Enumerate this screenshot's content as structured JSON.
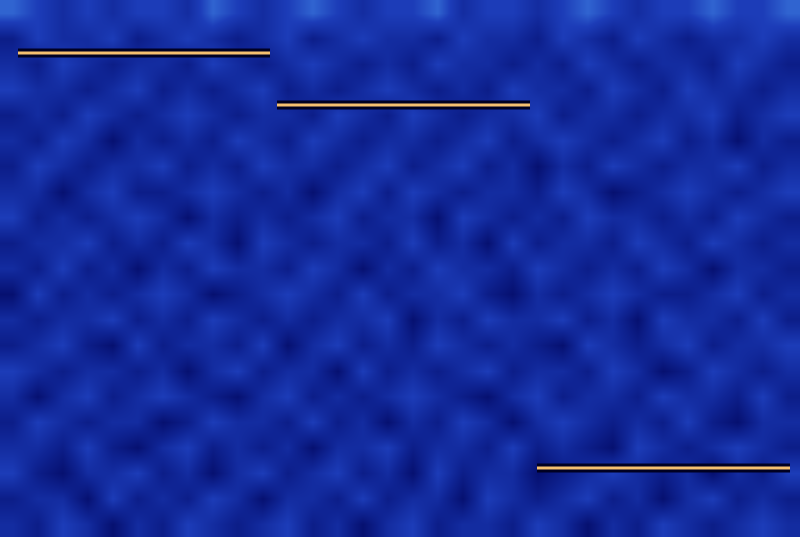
{
  "chart_data": {
    "type": "heatmap",
    "xlim": [
      0,
      32
    ],
    "ylim": [
      0,
      21
    ],
    "zlim": [
      0,
      10
    ],
    "tick_labels": false,
    "grid": false,
    "cells": [
      [
        5,
        4,
        6,
        5,
        3,
        5,
        4,
        6,
        5,
        4,
        5,
        6,
        4,
        5,
        3,
        5,
        6,
        4,
        5,
        5,
        4,
        6,
        5,
        3,
        5,
        4,
        6,
        5,
        4,
        5,
        6,
        5
      ],
      [
        4,
        5,
        5,
        3,
        6,
        4,
        5,
        4,
        6,
        5,
        3,
        5,
        5,
        4,
        6,
        4,
        5,
        5,
        3,
        6,
        5,
        4,
        5,
        6,
        4,
        5,
        3,
        5,
        6,
        4,
        5,
        4
      ],
      [
        6,
        4,
        3,
        5,
        5,
        6,
        4,
        5,
        3,
        5,
        6,
        4,
        5,
        6,
        4,
        5,
        3,
        6,
        4,
        5,
        5,
        3,
        4,
        5,
        6,
        5,
        4,
        5,
        3,
        5,
        4,
        6
      ],
      [
        5,
        5,
        4,
        6,
        4,
        3,
        5,
        6,
        4,
        5,
        4,
        5,
        3,
        5,
        5,
        6,
        4,
        5,
        5,
        4,
        6,
        4,
        5,
        4,
        3,
        6,
        5,
        4,
        5,
        6,
        5,
        4
      ],
      [
        4,
        6,
        5,
        4,
        5,
        5,
        3,
        4,
        6,
        5,
        5,
        4,
        6,
        4,
        5,
        3,
        5,
        4,
        6,
        5,
        3,
        5,
        6,
        5,
        4,
        5,
        4,
        6,
        4,
        3,
        5,
        5
      ],
      [
        5,
        3,
        5,
        6,
        4,
        5,
        6,
        5,
        4,
        3,
        5,
        6,
        4,
        5,
        4,
        5,
        6,
        5,
        4,
        3,
        5,
        6,
        4,
        5,
        5,
        4,
        6,
        5,
        5,
        4,
        6,
        4
      ],
      [
        6,
        5,
        4,
        5,
        5,
        4,
        5,
        3,
        5,
        6,
        4,
        5,
        5,
        3,
        6,
        4,
        5,
        4,
        5,
        6,
        4,
        5,
        5,
        4,
        6,
        5,
        3,
        4,
        6,
        5,
        4,
        5
      ],
      [
        4,
        5,
        6,
        4,
        3,
        6,
        4,
        5,
        5,
        4,
        6,
        3,
        5,
        6,
        4,
        5,
        4,
        6,
        5,
        4,
        5,
        4,
        3,
        6,
        5,
        4,
        5,
        6,
        4,
        5,
        5,
        6
      ],
      [
        5,
        4,
        5,
        5,
        6,
        4,
        5,
        4,
        6,
        5,
        4,
        5,
        4,
        5,
        5,
        6,
        3,
        5,
        4,
        6,
        5,
        5,
        6,
        4,
        5,
        3,
        6,
        5,
        5,
        4,
        6,
        4
      ],
      [
        3,
        6,
        4,
        5,
        4,
        5,
        6,
        5,
        3,
        4,
        5,
        6,
        5,
        4,
        6,
        4,
        5,
        5,
        6,
        4,
        3,
        5,
        4,
        5,
        6,
        5,
        4,
        4,
        5,
        6,
        4,
        5
      ],
      [
        5,
        4,
        6,
        4,
        5,
        3,
        5,
        4,
        6,
        5,
        5,
        4,
        6,
        5,
        3,
        5,
        4,
        6,
        5,
        5,
        4,
        6,
        5,
        4,
        5,
        4,
        6,
        5,
        3,
        5,
        5,
        4
      ],
      [
        4,
        5,
        5,
        6,
        4,
        5,
        4,
        6,
        5,
        3,
        6,
        5,
        4,
        5,
        5,
        4,
        6,
        4,
        5,
        3,
        6,
        4,
        5,
        5,
        4,
        6,
        5,
        4,
        6,
        5,
        4,
        5
      ],
      [
        6,
        4,
        5,
        4,
        5,
        6,
        5,
        3,
        5,
        4,
        5,
        4,
        5,
        6,
        4,
        5,
        5,
        3,
        6,
        5,
        4,
        5,
        4,
        6,
        5,
        5,
        4,
        5,
        4,
        6,
        5,
        4
      ],
      [
        5,
        5,
        3,
        5,
        6,
        4,
        4,
        5,
        6,
        5,
        4,
        5,
        3,
        5,
        6,
        4,
        6,
        5,
        4,
        5,
        5,
        4,
        6,
        5,
        3,
        4,
        5,
        6,
        5,
        4,
        5,
        6
      ],
      [
        4,
        6,
        5,
        4,
        5,
        5,
        6,
        4,
        5,
        4,
        6,
        5,
        5,
        4,
        5,
        6,
        4,
        5,
        6,
        4,
        5,
        3,
        5,
        4,
        6,
        5,
        4,
        5,
        5,
        6,
        4,
        5
      ],
      [
        5,
        4,
        6,
        5,
        3,
        5,
        4,
        5,
        4,
        6,
        5,
        4,
        6,
        5,
        4,
        5,
        5,
        4,
        5,
        6,
        4,
        5,
        6,
        5,
        4,
        5,
        6,
        4,
        5,
        3,
        5,
        4
      ],
      [
        4,
        5,
        4,
        6,
        5,
        4,
        5,
        6,
        5,
        4,
        5,
        5,
        4,
        6,
        5,
        4,
        6,
        5,
        4,
        5,
        5,
        6,
        4,
        5,
        5,
        4,
        5,
        5,
        6,
        4,
        5,
        6
      ],
      [
        6,
        5,
        5,
        4,
        5,
        6,
        4,
        5,
        4,
        5,
        6,
        4,
        5,
        4,
        5,
        6,
        5,
        4,
        5,
        4,
        6,
        5,
        5,
        4,
        6,
        5,
        4,
        6,
        5,
        5,
        4,
        5
      ],
      [
        5,
        4,
        6,
        5,
        4,
        5,
        5,
        4,
        6,
        5,
        4,
        5,
        6,
        5,
        4,
        5,
        4,
        6,
        5,
        5,
        4,
        5,
        4,
        6,
        5,
        4,
        5,
        5,
        4,
        6,
        5,
        4
      ],
      [
        4,
        6,
        5,
        5,
        6,
        4,
        5,
        6,
        5,
        4,
        5,
        6,
        4,
        5,
        6,
        5,
        5,
        4,
        6,
        5,
        5,
        4,
        6,
        5,
        4,
        6,
        5,
        4,
        5,
        5,
        6,
        5
      ],
      [
        7,
        6,
        5,
        6,
        5,
        6,
        6,
        5,
        7,
        6,
        5,
        6,
        7,
        6,
        5,
        6,
        6,
        7,
        5,
        6,
        6,
        5,
        6,
        7,
        6,
        5,
        6,
        6,
        7,
        6,
        6,
        7
      ]
    ],
    "series": [
      {
        "type": "line",
        "color": "#f5c070",
        "x": [
          0.72,
          10.8
        ],
        "values": [
          18.93,
          18.93
        ]
      },
      {
        "type": "line",
        "color": "#f5c070",
        "x": [
          11.08,
          21.2
        ],
        "values": [
          16.89,
          16.89
        ]
      },
      {
        "type": "line",
        "color": "#f5c070",
        "x": [
          21.48,
          31.6
        ],
        "values": [
          2.7,
          2.7
        ]
      }
    ]
  }
}
